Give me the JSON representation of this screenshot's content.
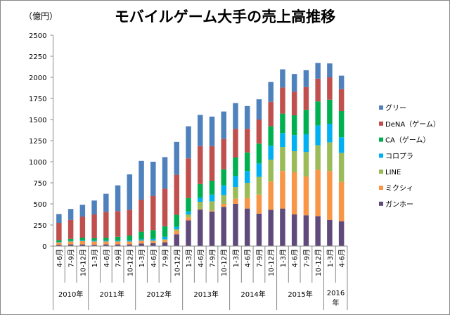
{
  "chart_data": {
    "type": "bar",
    "stacked": true,
    "title": "モバイルゲーム大手の売上高推移",
    "ylabel": "（億円）",
    "xlabel": "",
    "ylim": [
      0,
      2500
    ],
    "yticks": [
      0,
      250,
      500,
      750,
      1000,
      1250,
      1500,
      1750,
      2000,
      2250,
      2500
    ],
    "grid": false,
    "legend_position": "right",
    "categories": [
      "4-6月",
      "7-9月",
      "10-12月",
      "1-3月",
      "4-6月",
      "7-9月",
      "10-12月",
      "1-3月",
      "4-6月",
      "7-9月",
      "10-12月",
      "1-3月",
      "4-6月",
      "7-9月",
      "10-12月",
      "1-3月",
      "4-6月",
      "7-9月",
      "10-12月",
      "1-3月",
      "4-6月",
      "7-9月",
      "10-12月",
      "1-3月",
      "4-6月"
    ],
    "year_groups": [
      {
        "label": "2010年",
        "count": 3
      },
      {
        "label": "2011年",
        "count": 4
      },
      {
        "label": "2012年",
        "count": 4
      },
      {
        "label": "2013年",
        "count": 4
      },
      {
        "label": "2014年",
        "count": 4
      },
      {
        "label": "2015年",
        "count": 4
      },
      {
        "label": "2016年",
        "count": 2
      }
    ],
    "series": [
      {
        "name": "ガンホー",
        "color": "#604A7B",
        "values": [
          15,
          20,
          20,
          15,
          20,
          20,
          20,
          30,
          35,
          45,
          140,
          305,
          435,
          410,
          465,
          500,
          445,
          385,
          430,
          445,
          375,
          365,
          355,
          310,
          295
        ]
      },
      {
        "name": "ミクシィ",
        "color": "#F79646",
        "values": [
          30,
          35,
          40,
          40,
          35,
          35,
          35,
          35,
          25,
          25,
          40,
          35,
          5,
          10,
          35,
          60,
          125,
          225,
          335,
          445,
          500,
          460,
          550,
          580,
          465
        ]
      },
      {
        "name": "LINE",
        "color": "#9BBB59",
        "values": [
          0,
          0,
          0,
          0,
          0,
          0,
          0,
          0,
          5,
          10,
          20,
          35,
          85,
          110,
          105,
          140,
          180,
          210,
          260,
          285,
          250,
          290,
          290,
          340,
          345
        ]
      },
      {
        "name": "コロプラ",
        "color": "#00B0F0",
        "values": [
          5,
          5,
          10,
          10,
          10,
          10,
          15,
          15,
          20,
          30,
          30,
          35,
          50,
          80,
          115,
          130,
          140,
          160,
          165,
          165,
          190,
          210,
          235,
          220,
          185
        ]
      },
      {
        "name": "CA（ゲーム）",
        "color": "#00B050",
        "values": [
          20,
          25,
          30,
          30,
          35,
          45,
          55,
          90,
          105,
          125,
          140,
          160,
          160,
          165,
          190,
          220,
          220,
          235,
          230,
          230,
          235,
          290,
          285,
          285,
          310
        ]
      },
      {
        "name": "DeNA（ゲーム）",
        "color": "#C0504D",
        "values": [
          205,
          225,
          250,
          280,
          305,
          305,
          305,
          380,
          405,
          445,
          475,
          470,
          450,
          410,
          360,
          340,
          280,
          285,
          290,
          310,
          280,
          270,
          270,
          265,
          260
        ]
      },
      {
        "name": "グリー",
        "color": "#4F81BD",
        "values": [
          105,
          130,
          140,
          165,
          215,
          305,
          420,
          460,
          405,
          375,
          390,
          380,
          370,
          350,
          325,
          305,
          270,
          240,
          235,
          215,
          210,
          200,
          185,
          165,
          160
        ]
      }
    ],
    "legend_order": [
      "グリー",
      "DeNA（ゲーム）",
      "CA（ゲーム）",
      "コロプラ",
      "LINE",
      "ミクシィ",
      "ガンホー"
    ]
  }
}
